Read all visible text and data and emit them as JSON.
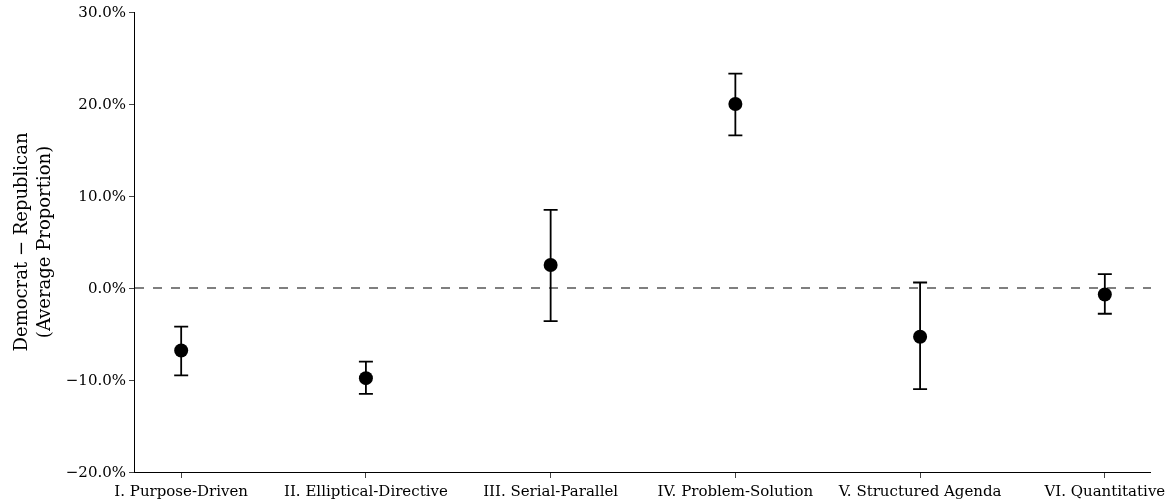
{
  "chart_data": {
    "type": "scatter",
    "ylabel": "Democrat − Republican\n(Average Proportion)",
    "categories": [
      "I. Purpose-Driven",
      "II. Elliptical-Directive",
      "III. Serial-Parallel",
      "IV. Problem-Solution",
      "V. Structured Agenda",
      "VI. Quantitative"
    ],
    "series": [
      {
        "color": "#000000",
        "values": [
          -6.8,
          -9.8,
          2.5,
          20.0,
          -5.3,
          -0.7
        ],
        "errors": [
          [
            -9.5,
            -4.2
          ],
          [
            -11.5,
            -8.0
          ],
          [
            -3.6,
            8.5
          ],
          [
            16.6,
            23.3
          ],
          [
            -11.0,
            0.6
          ],
          [
            -2.8,
            1.5
          ]
        ]
      }
    ],
    "ylim": [
      -20,
      30
    ],
    "yticks": [
      {
        "value": -20,
        "label": "−20.0%"
      },
      {
        "value": -10,
        "label": "−10.0%"
      },
      {
        "value": 0,
        "label": "0.0%"
      },
      {
        "value": 10,
        "label": "10.0%"
      },
      {
        "value": 20,
        "label": "20.0%"
      },
      {
        "value": 30,
        "label": "30.0%"
      }
    ],
    "ref_lines": [
      {
        "axis": "y",
        "value": 0,
        "color": "#000000",
        "line_style": "dashed"
      }
    ],
    "marker": "circle"
  }
}
